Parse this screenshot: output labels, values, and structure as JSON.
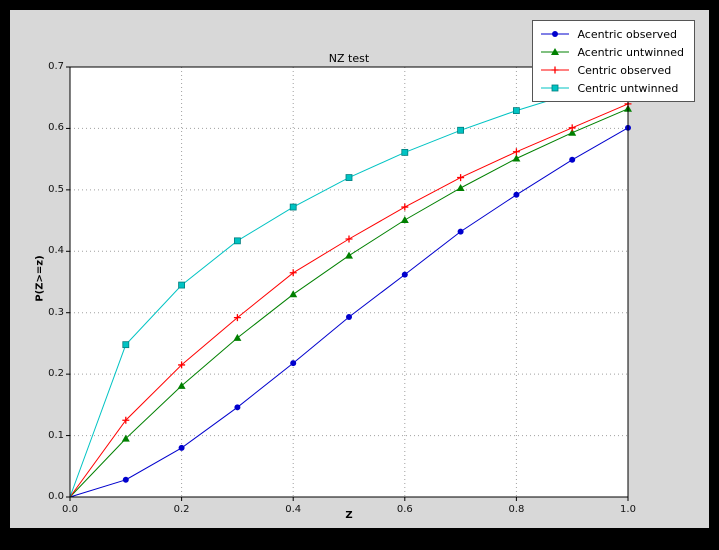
{
  "figure": {
    "bg": "#d8d8d8",
    "plot_bg": "#ffffff",
    "grid_color": "#a0a0a0",
    "axis_color": "#000000"
  },
  "chart_data": {
    "type": "line",
    "title": "NZ test",
    "xlabel": "Z",
    "ylabel": "P(Z>=z)",
    "xlim": [
      0.0,
      1.0
    ],
    "ylim": [
      0.0,
      0.7
    ],
    "xticks": [
      0.0,
      0.2,
      0.4,
      0.6,
      0.8,
      1.0
    ],
    "yticks": [
      0.0,
      0.1,
      0.2,
      0.3,
      0.4,
      0.5,
      0.6,
      0.7
    ],
    "grid": true,
    "legend_position": "upper right",
    "x": [
      0.0,
      0.1,
      0.2,
      0.3,
      0.4,
      0.5,
      0.6,
      0.7,
      0.8,
      0.9,
      1.0
    ],
    "series": [
      {
        "name": "Acentric observed",
        "color": "#0000cd",
        "marker": "circle",
        "values": [
          0.0,
          0.028,
          0.08,
          0.146,
          0.218,
          0.293,
          0.362,
          0.432,
          0.492,
          0.549,
          0.601
        ]
      },
      {
        "name": "Acentric untwinned",
        "color": "#008000",
        "marker": "triangle",
        "values": [
          0.0,
          0.095,
          0.181,
          0.259,
          0.33,
          0.393,
          0.451,
          0.503,
          0.551,
          0.593,
          0.632
        ]
      },
      {
        "name": "Centric observed",
        "color": "#ff0000",
        "marker": "plus",
        "values": [
          0.0,
          0.125,
          0.215,
          0.292,
          0.365,
          0.42,
          0.472,
          0.52,
          0.562,
          0.601,
          0.64
        ]
      },
      {
        "name": "Centric untwinned",
        "color": "#00c3c3",
        "marker": "square",
        "values": [
          0.0,
          0.248,
          0.345,
          0.417,
          0.472,
          0.52,
          0.561,
          0.597,
          0.629,
          0.657,
          0.683
        ]
      }
    ]
  }
}
